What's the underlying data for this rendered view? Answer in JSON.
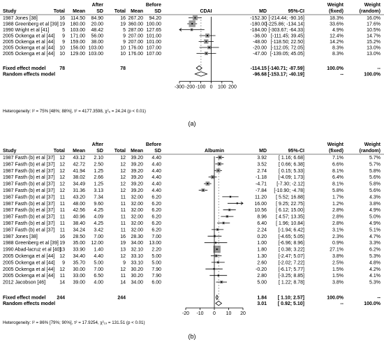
{
  "chart_data": [
    {
      "type": "forest",
      "panel_label": "(a)",
      "outcome": "CDAI",
      "group_labels": {
        "after": "After",
        "before": "Before"
      },
      "headers": {
        "study": "Study",
        "total1": "Total",
        "mean1": "Mean",
        "sd1": "SD",
        "total2": "Total",
        "mean2": "Mean",
        "sd2": "SD",
        "md": "MD",
        "ci": "95%-CI",
        "wf": "Weight\n(fixed)",
        "wr": "Weight\n(random)"
      },
      "studies": [
        {
          "study": "1987 Jones [38]",
          "n1": "16",
          "m1": "114.50",
          "sd1": "84.90",
          "n2": "16",
          "m2": "267.20",
          "sd2": "94.20",
          "md": -152.3,
          "lo": -214.44,
          "hi": -90.16,
          "md_text": "-152.30",
          "ci_text": "[-214.44; -90.16]",
          "wf": "18.3%",
          "wr": "16.0%",
          "wfn": 18.3
        },
        {
          "study": "1988 Greenberg et al [39]",
          "n1": "19",
          "m1": "180.00",
          "sd1": "20.00",
          "n2": "19",
          "m2": "360.00",
          "sd2": "100.00",
          "md": -180.0,
          "lo": -225.86,
          "hi": -134.14,
          "md_text": "-180.00",
          "ci_text": "[-225.86; -134.14]",
          "wf": "33.6%",
          "wr": "17.6%",
          "wfn": 33.6
        },
        {
          "study": "1990 Wright et al [41]",
          "n1": "5",
          "m1": "103.00",
          "sd1": "48.42",
          "n2": "5",
          "m2": "287.00",
          "sd2": "127.65",
          "md": -184.0,
          "lo": -303.67,
          "hi": -64.33,
          "md_text": "-184.00",
          "ci_text": "[-303.67; -64.33]",
          "wf": "4.9%",
          "wr": "10.5%",
          "wfn": 4.9
        },
        {
          "study": "2005 Ockenga et al [44]",
          "n1": "9",
          "m1": "171.00",
          "sd1": "56.00",
          "n2": "9",
          "m2": "207.00",
          "sd2": "101.00",
          "md": -36.0,
          "lo": -111.45,
          "hi": 39.45,
          "md_text": "-36.00",
          "ci_text": "[-111.45; 39.45]",
          "wf": "12.4%",
          "wr": "14.7%",
          "wfn": 12.4
        },
        {
          "study": "2005 Ockenga et al [44]",
          "n1": "9",
          "m1": "159.00",
          "sd1": "38.00",
          "n2": "9",
          "m2": "207.00",
          "sd2": "101.00",
          "md": -48.0,
          "lo": -118.5,
          "hi": 22.5,
          "md_text": "-48.00",
          "ci_text": "[-118.50; 22.50]",
          "wf": "14.2%",
          "wr": "15.2%",
          "wfn": 14.2
        },
        {
          "study": "2005 Ockenga et al [44]",
          "n1": "10",
          "m1": "156.00",
          "sd1": "103.00",
          "n2": "10",
          "m2": "176.00",
          "sd2": "107.00",
          "md": -20.0,
          "lo": -112.05,
          "hi": 72.05,
          "md_text": "-20.00",
          "ci_text": "[-112.05; 72.05]",
          "wf": "8.3%",
          "wr": "13.0%",
          "wfn": 8.3
        },
        {
          "study": "2005 Ockenga et al [44]",
          "n1": "10",
          "m1": "129.00",
          "sd1": "103.00",
          "n2": "10",
          "m2": "176.00",
          "sd2": "107.00",
          "md": -47.0,
          "lo": -139.05,
          "hi": 45.05,
          "md_text": "-47.00",
          "ci_text": "[-139.05; 45.05]",
          "wf": "8.3%",
          "wr": "13.0%",
          "wfn": 8.3
        }
      ],
      "fixed": {
        "label": "Fixed effect model",
        "n1": "78",
        "n2": "78",
        "md": -114.15,
        "lo": -140.71,
        "hi": -87.59,
        "md_text": "-114.15",
        "ci_text": "[-140.71; -87.59]",
        "wf": "100.0%",
        "wr": "--"
      },
      "random": {
        "label": "Random effects model",
        "md": -96.68,
        "lo": -153.17,
        "hi": -40.19,
        "md_text": "-96.68",
        "ci_text": "[-153.17; -40.19]",
        "wf": "--",
        "wr": "100.0%"
      },
      "heterogeneity": "Heterogeneity: I² = 75% [48%; 88%], τ² = 4177.3598, χ²₆ = 24.24 (p < 0.01)",
      "x_range": [
        -300,
        200
      ],
      "x_ticks": [
        -300,
        -200,
        -100,
        0,
        100,
        200
      ]
    },
    {
      "type": "forest",
      "panel_label": "(b)",
      "outcome": "Albumin",
      "group_labels": {
        "after": "After",
        "before": "Before"
      },
      "headers": {
        "study": "Study",
        "total1": "Total",
        "mean1": "Mean",
        "sd1": "SD",
        "total2": "Total",
        "mean2": "Mean",
        "sd2": "SD",
        "md": "MD",
        "ci": "95%-CI",
        "wf": "Weight\n(fixed)",
        "wr": "Weight\n(random)"
      },
      "studies": [
        {
          "study": "1987 Fasth (b) et al [37]",
          "n1": "12",
          "m1": "43.12",
          "sd1": "2.10",
          "n2": "12",
          "m2": "39.20",
          "sd2": "4.40",
          "md": 3.92,
          "lo": 1.16,
          "hi": 6.68,
          "md_text": "3.92",
          "ci_text": "[ 1.16; 6.68]",
          "wf": "7.1%",
          "wr": "5.7%",
          "wfn": 7.1
        },
        {
          "study": "1987 Fasth (b) et al [37]",
          "n1": "12",
          "m1": "42.72",
          "sd1": "2.50",
          "n2": "12",
          "m2": "39.20",
          "sd2": "4.40",
          "md": 3.52,
          "lo": 0.66,
          "hi": 6.38,
          "md_text": "3.52",
          "ci_text": "[ 0.66; 6.38]",
          "wf": "6.6%",
          "wr": "5.7%",
          "wfn": 6.6
        },
        {
          "study": "1987 Fasth (b) et al [37]",
          "n1": "12",
          "m1": "41.94",
          "sd1": "1.25",
          "n2": "12",
          "m2": "39.20",
          "sd2": "4.40",
          "md": 2.74,
          "lo": 0.15,
          "hi": 5.33,
          "md_text": "2.74",
          "ci_text": "[ 0.15; 5.33]",
          "wf": "8.1%",
          "wr": "5.8%",
          "wfn": 8.1
        },
        {
          "study": "1987 Fasth (b) et al [37]",
          "n1": "12",
          "m1": "38.02",
          "sd1": "2.66",
          "n2": "12",
          "m2": "39.20",
          "sd2": "4.40",
          "md": -1.18,
          "lo": -4.09,
          "hi": 1.73,
          "md_text": "-1.18",
          "ci_text": "[-4.09; 1.73]",
          "wf": "6.4%",
          "wr": "5.6%",
          "wfn": 6.4
        },
        {
          "study": "1987 Fasth (b) et al [37]",
          "n1": "12",
          "m1": "34.49",
          "sd1": "1.25",
          "n2": "12",
          "m2": "39.20",
          "sd2": "4.40",
          "md": -4.71,
          "lo": -7.3,
          "hi": -2.12,
          "md_text": "-4.71",
          "ci_text": "[-7.30; -2.12]",
          "wf": "8.1%",
          "wr": "5.8%",
          "wfn": 8.1
        },
        {
          "study": "1987 Fasth (b) et al [37]",
          "n1": "12",
          "m1": "31.36",
          "sd1": "3.13",
          "n2": "12",
          "m2": "39.20",
          "sd2": "4.40",
          "md": -7.84,
          "lo": -10.9,
          "hi": -4.78,
          "md_text": "-7.84",
          "ci_text": "[-10.90; -4.78]",
          "wf": "5.8%",
          "wr": "5.6%",
          "wfn": 5.8
        },
        {
          "study": "1987 Fasth (b) et al [37]",
          "n1": "11",
          "m1": "43.20",
          "sd1": "7.34",
          "n2": "11",
          "m2": "32.00",
          "sd2": "6.20",
          "md": 11.2,
          "lo": 5.52,
          "hi": 16.88,
          "md_text": "11.20",
          "ci_text": "[ 5.52; 16.88]",
          "wf": "1.7%",
          "wr": "4.3%",
          "wfn": 1.7
        },
        {
          "study": "1987 Fasth (b) et al [37]",
          "n1": "11",
          "m1": "48.00",
          "sd1": "9.60",
          "n2": "11",
          "m2": "32.00",
          "sd2": "6.20",
          "md": 16.0,
          "lo": 9.25,
          "hi": 22.75,
          "md_text": "16.00",
          "ci_text": "[ 9.25; 22.75]",
          "wf": "1.2%",
          "wr": "3.8%",
          "wfn": 1.2
        },
        {
          "study": "1987 Fasth (b) et al [37]",
          "n1": "11",
          "m1": "42.56",
          "sd1": "4.25",
          "n2": "11",
          "m2": "32.00",
          "sd2": "6.20",
          "md": 10.56,
          "lo": 6.12,
          "hi": 15.0,
          "md_text": "10.56",
          "ci_text": "[ 6.12; 15.00]",
          "wf": "2.8%",
          "wr": "4.9%",
          "wfn": 2.8
        },
        {
          "study": "1987 Fasth (b) et al [37]",
          "n1": "11",
          "m1": "40.96",
          "sd1": "4.09",
          "n2": "11",
          "m2": "32.00",
          "sd2": "6.20",
          "md": 8.96,
          "lo": 4.57,
          "hi": 13.35,
          "md_text": "8.96",
          "ci_text": "[ 4.57; 13.35]",
          "wf": "2.8%",
          "wr": "5.0%",
          "wfn": 2.8
        },
        {
          "study": "1987 Fasth (b) et al [37]",
          "n1": "11",
          "m1": "38.40",
          "sd1": "4.25",
          "n2": "11",
          "m2": "32.00",
          "sd2": "6.20",
          "md": 6.4,
          "lo": 1.96,
          "hi": 10.84,
          "md_text": "6.40",
          "ci_text": "[ 1.96; 10.84]",
          "wf": "2.8%",
          "wr": "4.9%",
          "wfn": 2.8
        },
        {
          "study": "1987 Fasth (b) et al [37]",
          "n1": "11",
          "m1": "34.24",
          "sd1": "3.42",
          "n2": "11",
          "m2": "32.00",
          "sd2": "6.20",
          "md": 2.24,
          "lo": -1.94,
          "hi": 6.42,
          "md_text": "2.24",
          "ci_text": "[-1.94; 6.42]",
          "wf": "3.1%",
          "wr": "5.1%",
          "wfn": 3.1
        },
        {
          "study": "1987 Jones [38]",
          "n1": "16",
          "m1": "28.50",
          "sd1": "7.00",
          "n2": "16",
          "m2": "28.30",
          "sd2": "7.00",
          "md": 0.2,
          "lo": -4.65,
          "hi": 5.05,
          "md_text": "0.20",
          "ci_text": "[-4.65; 5.05]",
          "wf": "2.3%",
          "wr": "4.7%",
          "wfn": 2.3
        },
        {
          "study": "1988 Greenberg et al [39]",
          "n1": "19",
          "m1": "35.00",
          "sd1": "12.00",
          "n2": "19",
          "m2": "34.00",
          "sd2": "13.00",
          "md": 1.0,
          "lo": -6.96,
          "hi": 8.96,
          "md_text": "1.00",
          "ci_text": "[-6.96; 8.96]",
          "wf": "0.9%",
          "wr": "3.3%",
          "wfn": 0.9
        },
        {
          "study": "1990 Abad-lacruz et al [40]",
          "n1": "13",
          "m1": "33.90",
          "sd1": "1.40",
          "n2": "13",
          "m2": "32.10",
          "sd2": "2.20",
          "md": 1.8,
          "lo": 0.38,
          "hi": 3.22,
          "md_text": "1.80",
          "ci_text": "[ 0.38; 3.22]",
          "wf": "27.1%",
          "wr": "6.2%",
          "wfn": 27.1
        },
        {
          "study": "2005 Ockenga et al [44]",
          "n1": "12",
          "m1": "34.40",
          "sd1": "4.40",
          "n2": "12",
          "m2": "33.10",
          "sd2": "5.00",
          "md": 1.3,
          "lo": -2.47,
          "hi": 5.07,
          "md_text": "1.30",
          "ci_text": "[-2.47; 5.07]",
          "wf": "3.8%",
          "wr": "5.3%",
          "wfn": 3.8
        },
        {
          "study": "2005 Ockenga et al [44]",
          "n1": "9",
          "m1": "35.70",
          "sd1": "5.00",
          "n2": "9",
          "m2": "33.10",
          "sd2": "5.00",
          "md": 2.6,
          "lo": -2.02,
          "hi": 7.22,
          "md_text": "2.60",
          "ci_text": "[-2.02; 7.22]",
          "wf": "2.5%",
          "wr": "4.8%",
          "wfn": 2.5
        },
        {
          "study": "2005 Ockenga et al [44]",
          "n1": "12",
          "m1": "30.00",
          "sd1": "7.00",
          "n2": "12",
          "m2": "30.20",
          "sd2": "7.90",
          "md": -0.2,
          "lo": -6.17,
          "hi": 5.77,
          "md_text": "-0.20",
          "ci_text": "[-6.17; 5.77]",
          "wf": "1.5%",
          "wr": "4.2%",
          "wfn": 1.5
        },
        {
          "study": "2005 Ockenga et al [44]",
          "n1": "11",
          "m1": "33.00",
          "sd1": "6.50",
          "n2": "11",
          "m2": "30.20",
          "sd2": "7.90",
          "md": 2.8,
          "lo": -3.25,
          "hi": 8.85,
          "md_text": "2.80",
          "ci_text": "[-3.25; 8.85]",
          "wf": "1.5%",
          "wr": "4.1%",
          "wfn": 1.5
        },
        {
          "study": "2012 Jacobson [46]",
          "n1": "14",
          "m1": "39.00",
          "sd1": "4.00",
          "n2": "14",
          "m2": "34.00",
          "sd2": "6.00",
          "md": 5.0,
          "lo": 1.22,
          "hi": 8.78,
          "md_text": "5.00",
          "ci_text": "[ 1.22; 8.78]",
          "wf": "3.8%",
          "wr": "5.3%",
          "wfn": 3.8
        }
      ],
      "fixed": {
        "label": "Fixed effect model",
        "n1": "244",
        "n2": "244",
        "md": 1.84,
        "lo": 1.1,
        "hi": 2.57,
        "md_text": "1.84",
        "ci_text": "[ 1.10; 2.57]",
        "wf": "100.0%",
        "wr": "--"
      },
      "random": {
        "label": "Random effects model",
        "md": 3.01,
        "lo": 0.92,
        "hi": 5.1,
        "md_text": "3.01",
        "ci_text": "[ 0.92; 5.10]",
        "wf": "--",
        "wr": "100.0%"
      },
      "heterogeneity": "Heterogeneity: I² = 86% [79%; 90%], τ² = 17.9254, χ²₁₉ = 131.51 (p < 0.01)",
      "x_range": [
        -20,
        20
      ],
      "x_ticks": [
        -20,
        -10,
        0,
        10,
        20
      ]
    }
  ]
}
